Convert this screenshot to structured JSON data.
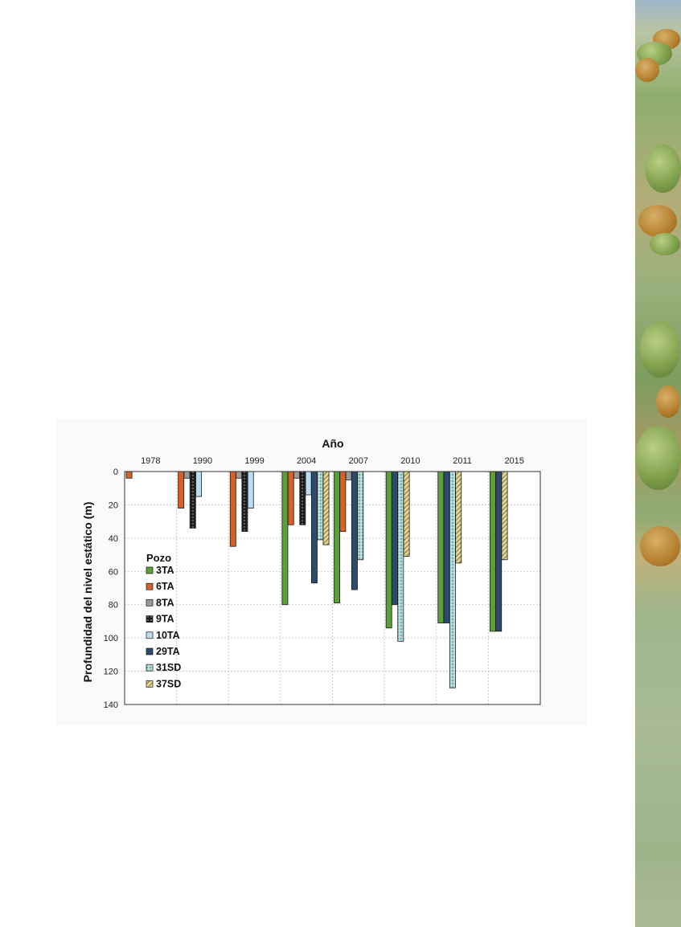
{
  "chart_data": {
    "type": "bar",
    "orientation": "inverted-vertical",
    "title": "Año",
    "ylabel": "Profundidad del nivel estático (m)",
    "ylim": [
      0,
      140
    ],
    "yticks": [
      0,
      20,
      40,
      60,
      80,
      100,
      120,
      140
    ],
    "categories": [
      "1978",
      "1990",
      "1999",
      "2004",
      "2007",
      "2010",
      "2011",
      "2015"
    ],
    "grid": true,
    "x_axis_position": "top",
    "legend": {
      "title": "Pozo",
      "placement": "bottom-left"
    },
    "series": [
      {
        "name": "3TA",
        "color": "#5c9e38",
        "pattern": "solid",
        "values": [
          null,
          null,
          null,
          80,
          79,
          94,
          91,
          96
        ]
      },
      {
        "name": "6TA",
        "color": "#d6602a",
        "pattern": "solid",
        "values": [
          4,
          22,
          45,
          32,
          36,
          null,
          null,
          null
        ]
      },
      {
        "name": "8TA",
        "color": "#9a9a9a",
        "pattern": "solid",
        "values": [
          null,
          4,
          4,
          4,
          5,
          null,
          null,
          null
        ]
      },
      {
        "name": "9TA",
        "color": "#1e1e1e",
        "pattern": "dots",
        "values": [
          null,
          34,
          36,
          32,
          null,
          null,
          null,
          null
        ]
      },
      {
        "name": "10TA",
        "color": "#bcdcf2",
        "pattern": "solid",
        "values": [
          null,
          15,
          22,
          14,
          null,
          null,
          null,
          null
        ]
      },
      {
        "name": "29TA",
        "color": "#2d4c6c",
        "pattern": "solid",
        "values": [
          null,
          null,
          null,
          67,
          71,
          80,
          91,
          96
        ]
      },
      {
        "name": "31SD",
        "color": "#a9d8d6",
        "pattern": "speckle",
        "values": [
          null,
          null,
          null,
          41,
          53,
          102,
          130,
          null
        ]
      },
      {
        "name": "37SD",
        "color": "#e6d88a",
        "pattern": "hatch",
        "values": [
          null,
          null,
          null,
          44,
          null,
          51,
          55,
          53
        ]
      }
    ]
  }
}
